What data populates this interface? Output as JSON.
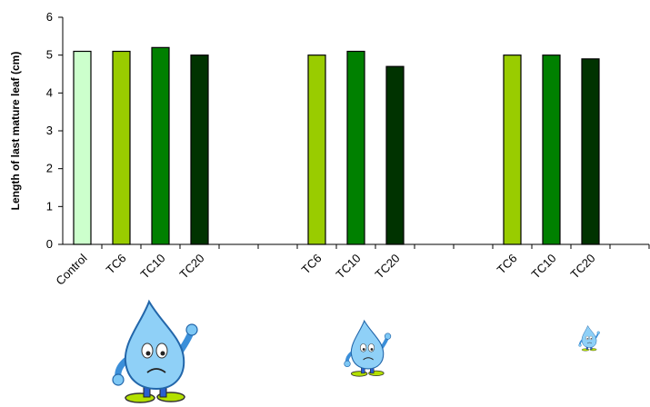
{
  "chart_data": {
    "type": "bar",
    "ylabel": "Length of last mature leaf (cm)",
    "ylim": [
      0,
      6
    ],
    "yticks": [
      0,
      1,
      2,
      3,
      4,
      5,
      6
    ],
    "grid": false,
    "legend": "none",
    "groups": [
      {
        "bars": [
          {
            "label": "Control",
            "value": 5.1,
            "color": "#ccffcc"
          },
          {
            "label": "TC6",
            "value": 5.1,
            "color": "#99cc00"
          },
          {
            "label": "TC10",
            "value": 5.2,
            "color": "#008000"
          },
          {
            "label": "TC20",
            "value": 5.0,
            "color": "#003300"
          }
        ],
        "illustration": "water-drop-character-large"
      },
      {
        "bars": [
          {
            "label": "TC6",
            "value": 5.0,
            "color": "#99cc00"
          },
          {
            "label": "TC10",
            "value": 5.1,
            "color": "#008000"
          },
          {
            "label": "TC20",
            "value": 4.7,
            "color": "#003300"
          }
        ],
        "illustration": "water-drop-character-medium"
      },
      {
        "bars": [
          {
            "label": "TC6",
            "value": 5.0,
            "color": "#99cc00"
          },
          {
            "label": "TC10",
            "value": 5.0,
            "color": "#008000"
          },
          {
            "label": "TC20",
            "value": 4.9,
            "color": "#003300"
          }
        ],
        "illustration": "water-drop-character-small"
      }
    ]
  }
}
